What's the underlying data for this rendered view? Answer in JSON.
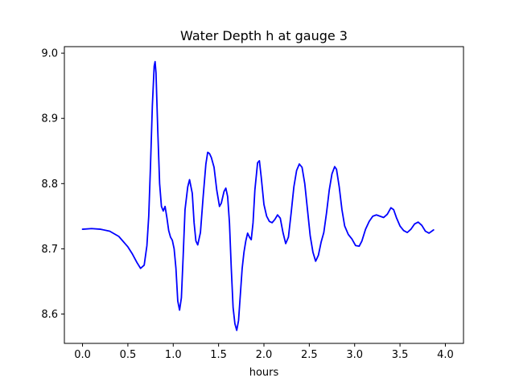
{
  "chart_data": {
    "type": "line",
    "title": "Water Depth h at gauge 3",
    "xlabel": "hours",
    "ylabel": "",
    "xlim": [
      -0.2,
      4.2
    ],
    "ylim": [
      8.555,
      9.01
    ],
    "xticks": [
      0.0,
      0.5,
      1.0,
      1.5,
      2.0,
      2.5,
      3.0,
      3.5,
      4.0
    ],
    "xtick_labels": [
      "0.0",
      "0.5",
      "1.0",
      "1.5",
      "2.0",
      "2.5",
      "3.0",
      "3.5",
      "4.0"
    ],
    "yticks": [
      8.6,
      8.7,
      8.8,
      8.9,
      9.0
    ],
    "ytick_labels": [
      "8.6",
      "8.7",
      "8.8",
      "8.9",
      "9.0"
    ],
    "grid": false,
    "series": [
      {
        "color": "#0000ff",
        "points": [
          [
            0.0,
            8.73
          ],
          [
            0.1,
            8.731
          ],
          [
            0.2,
            8.73
          ],
          [
            0.3,
            8.727
          ],
          [
            0.4,
            8.719
          ],
          [
            0.5,
            8.703
          ],
          [
            0.55,
            8.692
          ],
          [
            0.6,
            8.679
          ],
          [
            0.64,
            8.67
          ],
          [
            0.68,
            8.675
          ],
          [
            0.71,
            8.705
          ],
          [
            0.73,
            8.75
          ],
          [
            0.75,
            8.83
          ],
          [
            0.77,
            8.92
          ],
          [
            0.79,
            8.98
          ],
          [
            0.8,
            8.987
          ],
          [
            0.81,
            8.97
          ],
          [
            0.83,
            8.88
          ],
          [
            0.85,
            8.8
          ],
          [
            0.87,
            8.765
          ],
          [
            0.89,
            8.758
          ],
          [
            0.91,
            8.765
          ],
          [
            0.93,
            8.748
          ],
          [
            0.95,
            8.728
          ],
          [
            0.97,
            8.718
          ],
          [
            0.99,
            8.713
          ],
          [
            1.01,
            8.7
          ],
          [
            1.03,
            8.67
          ],
          [
            1.05,
            8.62
          ],
          [
            1.07,
            8.606
          ],
          [
            1.09,
            8.625
          ],
          [
            1.11,
            8.69
          ],
          [
            1.13,
            8.76
          ],
          [
            1.16,
            8.795
          ],
          [
            1.18,
            8.806
          ],
          [
            1.21,
            8.785
          ],
          [
            1.23,
            8.74
          ],
          [
            1.25,
            8.712
          ],
          [
            1.27,
            8.706
          ],
          [
            1.3,
            8.725
          ],
          [
            1.33,
            8.78
          ],
          [
            1.36,
            8.83
          ],
          [
            1.38,
            8.848
          ],
          [
            1.4,
            8.846
          ],
          [
            1.42,
            8.84
          ],
          [
            1.45,
            8.825
          ],
          [
            1.48,
            8.79
          ],
          [
            1.51,
            8.765
          ],
          [
            1.53,
            8.77
          ],
          [
            1.56,
            8.788
          ],
          [
            1.58,
            8.793
          ],
          [
            1.6,
            8.78
          ],
          [
            1.62,
            8.74
          ],
          [
            1.64,
            8.67
          ],
          [
            1.66,
            8.61
          ],
          [
            1.68,
            8.585
          ],
          [
            1.7,
            8.575
          ],
          [
            1.72,
            8.59
          ],
          [
            1.74,
            8.63
          ],
          [
            1.76,
            8.67
          ],
          [
            1.78,
            8.695
          ],
          [
            1.8,
            8.712
          ],
          [
            1.82,
            8.724
          ],
          [
            1.84,
            8.718
          ],
          [
            1.86,
            8.714
          ],
          [
            1.88,
            8.74
          ],
          [
            1.9,
            8.79
          ],
          [
            1.93,
            8.832
          ],
          [
            1.95,
            8.835
          ],
          [
            1.97,
            8.81
          ],
          [
            2.0,
            8.768
          ],
          [
            2.03,
            8.75
          ],
          [
            2.06,
            8.742
          ],
          [
            2.09,
            8.74
          ],
          [
            2.12,
            8.745
          ],
          [
            2.15,
            8.752
          ],
          [
            2.18,
            8.747
          ],
          [
            2.21,
            8.725
          ],
          [
            2.24,
            8.708
          ],
          [
            2.27,
            8.718
          ],
          [
            2.3,
            8.755
          ],
          [
            2.33,
            8.795
          ],
          [
            2.36,
            8.82
          ],
          [
            2.39,
            8.83
          ],
          [
            2.42,
            8.825
          ],
          [
            2.45,
            8.8
          ],
          [
            2.48,
            8.76
          ],
          [
            2.51,
            8.72
          ],
          [
            2.54,
            8.695
          ],
          [
            2.57,
            8.681
          ],
          [
            2.6,
            8.69
          ],
          [
            2.63,
            8.71
          ],
          [
            2.66,
            8.725
          ],
          [
            2.69,
            8.755
          ],
          [
            2.72,
            8.79
          ],
          [
            2.75,
            8.815
          ],
          [
            2.78,
            8.826
          ],
          [
            2.8,
            8.822
          ],
          [
            2.83,
            8.795
          ],
          [
            2.86,
            8.76
          ],
          [
            2.89,
            8.735
          ],
          [
            2.93,
            8.722
          ],
          [
            2.97,
            8.715
          ],
          [
            3.01,
            8.705
          ],
          [
            3.05,
            8.704
          ],
          [
            3.08,
            8.712
          ],
          [
            3.12,
            8.73
          ],
          [
            3.16,
            8.742
          ],
          [
            3.2,
            8.75
          ],
          [
            3.24,
            8.752
          ],
          [
            3.28,
            8.75
          ],
          [
            3.32,
            8.748
          ],
          [
            3.36,
            8.753
          ],
          [
            3.4,
            8.763
          ],
          [
            3.43,
            8.76
          ],
          [
            3.46,
            8.748
          ],
          [
            3.5,
            8.735
          ],
          [
            3.54,
            8.728
          ],
          [
            3.58,
            8.725
          ],
          [
            3.62,
            8.73
          ],
          [
            3.66,
            8.738
          ],
          [
            3.7,
            8.741
          ],
          [
            3.74,
            8.736
          ],
          [
            3.78,
            8.727
          ],
          [
            3.82,
            8.724
          ],
          [
            3.85,
            8.727
          ],
          [
            3.87,
            8.729
          ]
        ]
      }
    ]
  }
}
